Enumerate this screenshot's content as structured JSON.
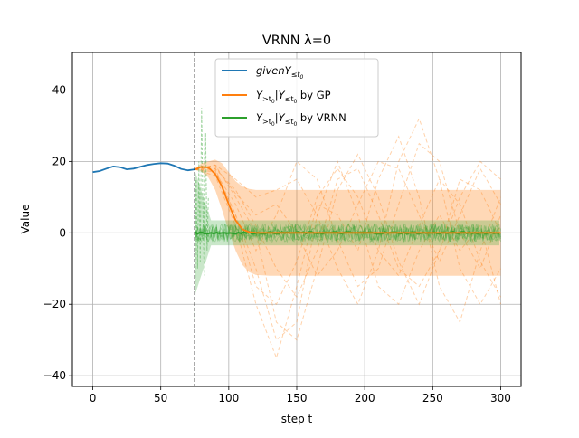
{
  "chart_data": {
    "type": "line",
    "title": "VRNN λ=0",
    "xlabel": "step t",
    "ylabel": "Value",
    "xlim": [
      -15,
      315
    ],
    "ylim": [
      -43,
      50.5
    ],
    "xticks": [
      0,
      50,
      100,
      150,
      200,
      250,
      300
    ],
    "yticks": [
      -40,
      -20,
      0,
      20,
      40
    ],
    "xtick_labels": [
      "0",
      "50",
      "100",
      "150",
      "200",
      "250",
      "300"
    ],
    "ytick_labels": [
      "−40",
      "−20",
      "0",
      "20",
      "40"
    ],
    "grid": true,
    "legend_position": "top-center",
    "t0": 75,
    "colors": {
      "given": "#1f77b4",
      "gp": "#ff7f0e",
      "vrnn": "#2ca02c",
      "t0_line": "#000000"
    },
    "series": [
      {
        "name": "givenY≤t0",
        "legend": {
          "main": "given",
          "sub": "≤t",
          "subsub": "0",
          "prefix": "Y",
          "suffix": ""
        },
        "x": [
          0,
          5,
          10,
          15,
          20,
          25,
          30,
          35,
          40,
          45,
          50,
          55,
          60,
          65,
          70,
          75
        ],
        "y": [
          17.0,
          17.3,
          18.0,
          18.6,
          18.4,
          17.8,
          18.0,
          18.5,
          19.0,
          19.3,
          19.5,
          19.4,
          18.8,
          17.9,
          17.5,
          17.8
        ]
      },
      {
        "name": "Y>t0|Y≤t0 by GP",
        "legend": {
          "suffix": " by GP"
        },
        "mean": {
          "x": [
            75,
            80,
            85,
            90,
            95,
            100,
            105,
            110,
            115,
            120,
            130,
            150,
            200,
            250,
            300
          ],
          "y": [
            17.8,
            18.5,
            18.3,
            16.5,
            13.0,
            8.0,
            3.5,
            1.0,
            0.2,
            0.0,
            0.0,
            0.0,
            0.0,
            0.0,
            0.0
          ]
        },
        "band_upper": {
          "x": [
            75,
            80,
            85,
            90,
            95,
            100,
            105,
            110,
            115,
            120,
            130,
            150,
            200,
            250,
            300
          ],
          "y": [
            17.8,
            19.5,
            20.0,
            20.5,
            19.5,
            17.0,
            14.5,
            13.0,
            12.3,
            12.0,
            12.0,
            12.0,
            12.0,
            12.0,
            12.0
          ]
        },
        "band_lower": {
          "x": [
            75,
            80,
            85,
            90,
            95,
            100,
            105,
            110,
            115,
            120,
            130,
            150,
            200,
            250,
            300
          ],
          "y": [
            17.8,
            17.2,
            15.5,
            12.0,
            6.5,
            0.5,
            -5.0,
            -9.0,
            -11.0,
            -11.8,
            -12.0,
            -12.0,
            -12.0,
            -12.0,
            -12.0
          ]
        },
        "samples_x": [
          75,
          90,
          105,
          120,
          135,
          150,
          165,
          180,
          195,
          210,
          225,
          240,
          255,
          270,
          285,
          300
        ],
        "samples": [
          [
            17.8,
            18.0,
            5.0,
            -15.0,
            -20.0,
            -8.0,
            10.0,
            18.0,
            10.0,
            -5.0,
            -12.0,
            2.0,
            15.0,
            8.0,
            -8.0,
            -18.0
          ],
          [
            17.8,
            17.0,
            8.0,
            -5.0,
            5.0,
            20.0,
            15.0,
            -2.0,
            -15.0,
            -10.0,
            8.0,
            25.0,
            20.0,
            0.0,
            -10.0,
            5.0
          ],
          [
            17.8,
            19.0,
            10.0,
            0.0,
            -25.0,
            -30.0,
            -10.0,
            12.0,
            22.0,
            10.0,
            -8.0,
            -20.0,
            -5.0,
            15.0,
            12.0,
            0.0
          ],
          [
            17.8,
            16.0,
            2.0,
            -20.0,
            -35.0,
            -15.0,
            8.0,
            5.0,
            -5.0,
            15.0,
            27.0,
            10.0,
            -15.0,
            -25.0,
            -5.0,
            10.0
          ],
          [
            17.8,
            19.0,
            15.0,
            10.0,
            12.0,
            15.0,
            5.0,
            -10.0,
            -20.0,
            -5.0,
            20.0,
            32.0,
            15.0,
            -10.0,
            -20.0,
            -10.0
          ],
          [
            17.8,
            18.0,
            12.0,
            2.0,
            -10.0,
            -18.0,
            -5.0,
            15.0,
            18.0,
            5.0,
            -10.0,
            -15.0,
            -5.0,
            10.0,
            20.0,
            15.0
          ],
          [
            17.8,
            17.5,
            5.0,
            -10.0,
            -30.0,
            -25.0,
            5.0,
            20.0,
            5.0,
            -15.0,
            -20.0,
            -5.0,
            5.0,
            -5.0,
            2.0,
            -20.0
          ],
          [
            17.8,
            18.5,
            11.0,
            5.0,
            8.0,
            0.0,
            -12.0,
            -5.0,
            8.0,
            20.0,
            18.0,
            5.0,
            -8.0,
            5.0,
            18.0,
            8.0
          ]
        ]
      },
      {
        "name": "Y>t0|Y≤t0 by VRNN",
        "legend": {
          "suffix": " by VRNN"
        },
        "mean_level": 0.0,
        "band_halfwidth": 3.5,
        "noise_amplitude": 2.5,
        "initial_spikes": {
          "x": [
            75,
            76,
            77,
            78,
            79,
            80,
            81,
            82,
            83,
            84,
            85
          ],
          "y": [
            -24,
            15,
            -10,
            20,
            -8,
            35,
            5,
            -12,
            28,
            -5,
            10
          ]
        }
      }
    ]
  }
}
